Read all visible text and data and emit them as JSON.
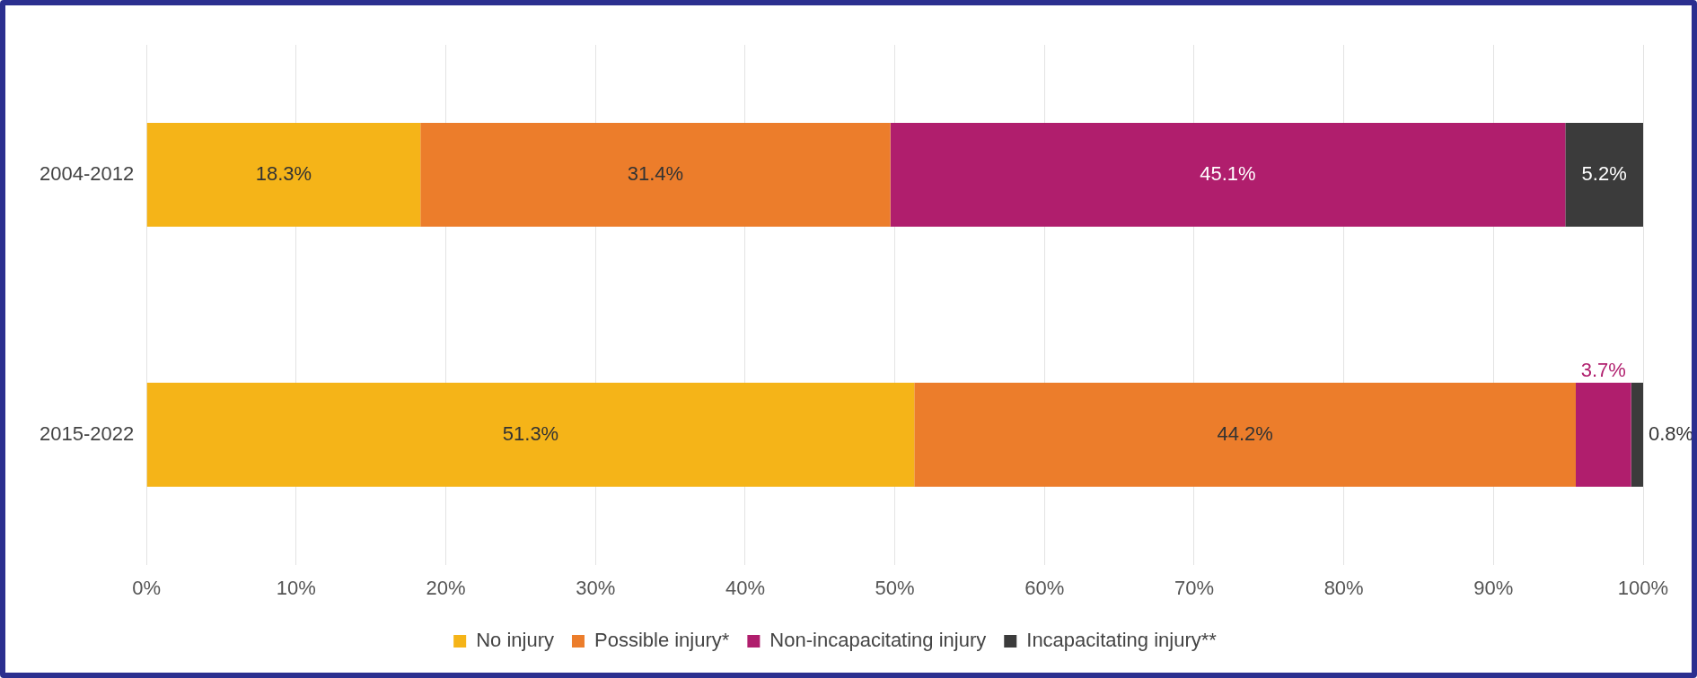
{
  "chart_data": {
    "type": "bar",
    "orientation": "horizontal",
    "stacked": true,
    "categories": [
      "2004-2012",
      "2015-2022"
    ],
    "series": [
      {
        "name": "No injury",
        "color": "#f5b418",
        "values": [
          18.3,
          51.3
        ],
        "value_labels": [
          "18.3%",
          "51.3%"
        ]
      },
      {
        "name": "Possible injury*",
        "color": "#ec7d2b",
        "values": [
          31.4,
          44.2
        ],
        "value_labels": [
          "31.4%",
          "44.2%"
        ]
      },
      {
        "name": "Non-incapacitating injury",
        "color": "#b01e6d",
        "values": [
          45.1,
          3.7
        ],
        "value_labels": [
          "45.1%",
          "3.7%"
        ]
      },
      {
        "name": "Incapacitating injury**",
        "color": "#3b3b3b",
        "values": [
          5.2,
          0.8
        ],
        "value_labels": [
          "5.2%",
          "0.8%"
        ]
      }
    ],
    "xlim": [
      0,
      100
    ],
    "xticks": [
      {
        "value": 0,
        "label": "0%"
      },
      {
        "value": 10,
        "label": "10%"
      },
      {
        "value": 20,
        "label": "20%"
      },
      {
        "value": 30,
        "label": "30%"
      },
      {
        "value": 40,
        "label": "40%"
      },
      {
        "value": 50,
        "label": "50%"
      },
      {
        "value": 60,
        "label": "60%"
      },
      {
        "value": 70,
        "label": "70%"
      },
      {
        "value": 80,
        "label": "80%"
      },
      {
        "value": 90,
        "label": "90%"
      },
      {
        "value": 100,
        "label": "100%"
      }
    ],
    "grid": "x",
    "legend": "bottom"
  }
}
